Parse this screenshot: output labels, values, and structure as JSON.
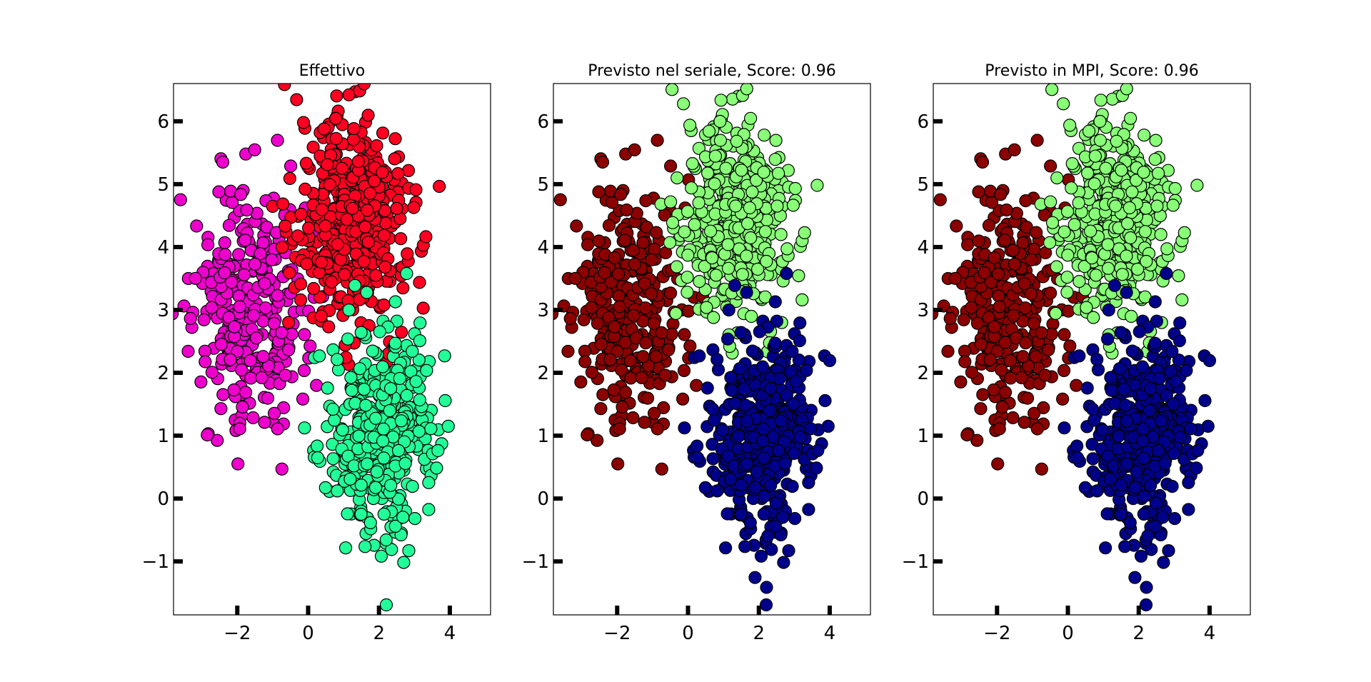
{
  "colors": {
    "magenta": "#ee00cc",
    "red": "#ff0022",
    "spring_green": "#22ff99",
    "dark_red": "#8b0000",
    "light_green": "#88ff77",
    "navy": "#00008b",
    "edge": "#000000"
  },
  "chart_data": [
    {
      "type": "scatter",
      "title": "Effettivo",
      "xlabel": "",
      "ylabel": "",
      "xlim": [
        -3.8,
        5.15
      ],
      "ylim": [
        -1.85,
        6.6
      ],
      "x_ticks": [
        -2,
        0,
        2,
        4
      ],
      "x_tick_labels": [
        "−2",
        "0",
        "2",
        "4"
      ],
      "y_ticks": [
        -1,
        0,
        1,
        2,
        3,
        4,
        5,
        6
      ],
      "y_tick_labels": [
        "−1",
        "0",
        "1",
        "2",
        "3",
        "4",
        "5",
        "6"
      ],
      "grid": false,
      "legend": "none",
      "clusters": [
        {
          "color": "magenta",
          "center": [
            -1.6,
            3.0
          ],
          "spread": [
            0.75,
            0.95
          ],
          "count": 330
        },
        {
          "color": "red",
          "center": [
            1.2,
            4.4
          ],
          "spread": [
            0.8,
            0.85
          ],
          "count": 430
        },
        {
          "color": "spring_green",
          "center": [
            2.0,
            1.0
          ],
          "spread": [
            0.75,
            0.8
          ],
          "count": 430
        }
      ]
    },
    {
      "type": "scatter",
      "title": "Previsto nel seriale, Score: 0.96",
      "xlabel": "",
      "ylabel": "",
      "xlim": [
        -3.8,
        5.15
      ],
      "ylim": [
        -1.85,
        6.6
      ],
      "x_ticks": [
        -2,
        0,
        2,
        4
      ],
      "x_tick_labels": [
        "−2",
        "0",
        "2",
        "4"
      ],
      "y_ticks": [
        -1,
        0,
        1,
        2,
        3,
        4,
        5,
        6
      ],
      "y_tick_labels": [
        "−1",
        "0",
        "1",
        "2",
        "3",
        "4",
        "5",
        "6"
      ],
      "grid": false,
      "legend": "none",
      "clusters": [
        {
          "color": "dark_red",
          "center": [
            -1.6,
            3.0
          ],
          "spread": [
            0.75,
            0.95
          ],
          "count": 340
        },
        {
          "color": "light_green",
          "center": [
            1.3,
            4.45
          ],
          "spread": [
            0.75,
            0.8
          ],
          "count": 420
        },
        {
          "color": "navy",
          "center": [
            2.0,
            1.0
          ],
          "spread": [
            0.75,
            0.8
          ],
          "count": 440
        }
      ]
    },
    {
      "type": "scatter",
      "title": "Previsto in MPI, Score: 0.96",
      "xlabel": "",
      "ylabel": "",
      "xlim": [
        -3.8,
        5.15
      ],
      "ylim": [
        -1.85,
        6.6
      ],
      "x_ticks": [
        -2,
        0,
        2,
        4
      ],
      "x_tick_labels": [
        "−2",
        "0",
        "2",
        "4"
      ],
      "y_ticks": [
        -1,
        0,
        1,
        2,
        3,
        4,
        5,
        6
      ],
      "y_tick_labels": [
        "−1",
        "0",
        "1",
        "2",
        "3",
        "4",
        "5",
        "6"
      ],
      "grid": false,
      "legend": "none",
      "clusters": [
        {
          "color": "dark_red",
          "center": [
            -1.6,
            3.0
          ],
          "spread": [
            0.75,
            0.95
          ],
          "count": 340
        },
        {
          "color": "light_green",
          "center": [
            1.3,
            4.45
          ],
          "spread": [
            0.75,
            0.8
          ],
          "count": 420
        },
        {
          "color": "navy",
          "center": [
            2.0,
            1.0
          ],
          "spread": [
            0.75,
            0.8
          ],
          "count": 440
        }
      ]
    }
  ]
}
